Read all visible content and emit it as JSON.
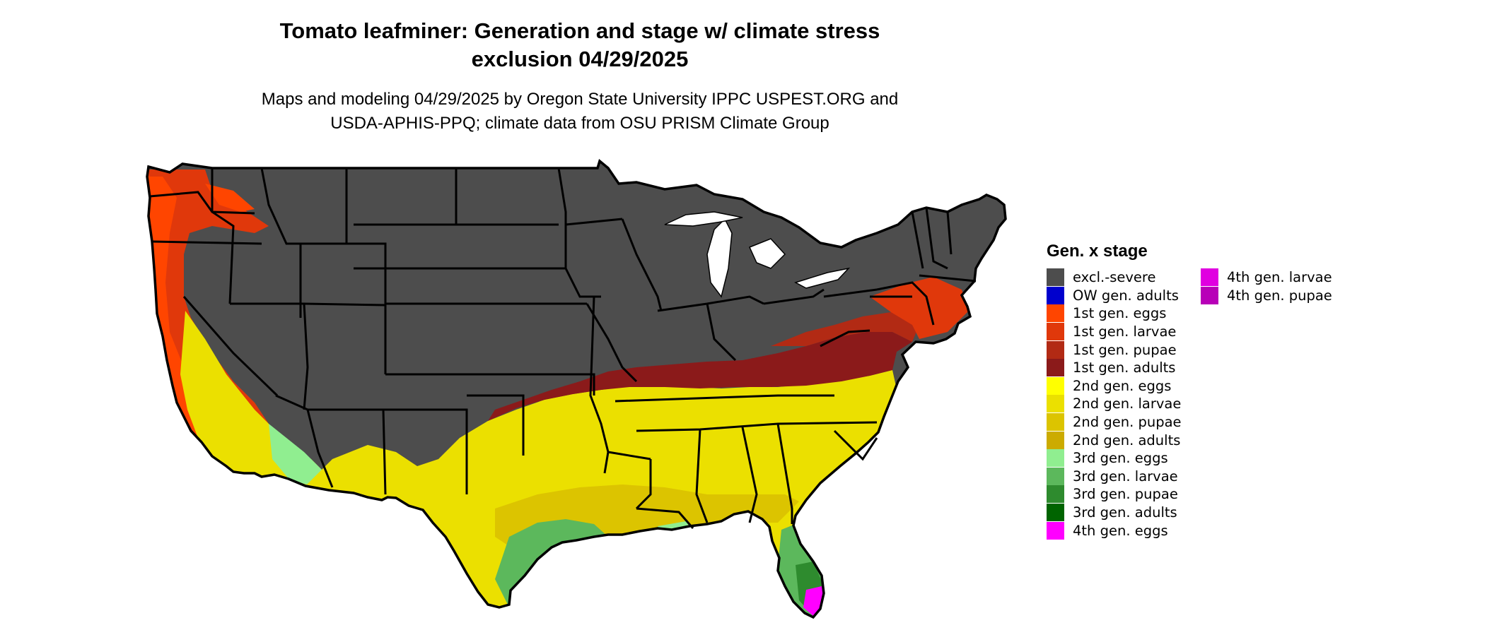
{
  "title": {
    "line1": "Tomato leafminer: Generation and stage w/ climate stress",
    "line2": "exclusion 04/29/2025"
  },
  "subtitle": {
    "line1": "Maps and modeling 04/29/2025 by Oregon State University IPPC USPEST.ORG and",
    "line2": "USDA-APHIS-PPQ; climate data from OSU PRISM Climate Group"
  },
  "map": {
    "region": "Contiguous United States",
    "boundaries": "state outlines"
  },
  "legend": {
    "title": "Gen. x stage",
    "column1": [
      {
        "label": "excl.-severe",
        "color": "#4d4d4d"
      },
      {
        "label": "OW gen. adults",
        "color": "#0000cd"
      },
      {
        "label": "1st gen. eggs",
        "color": "#ff4500"
      },
      {
        "label": "1st gen. larvae",
        "color": "#e0380b"
      },
      {
        "label": "1st gen. pupae",
        "color": "#b22a14"
      },
      {
        "label": "1st gen. adults",
        "color": "#8b1a1a"
      },
      {
        "label": "2nd gen. eggs",
        "color": "#ffff00"
      },
      {
        "label": "2nd gen. larvae",
        "color": "#ebe000"
      },
      {
        "label": "2nd gen. pupae",
        "color": "#dcc400"
      },
      {
        "label": "2nd gen. adults",
        "color": "#ccab00"
      },
      {
        "label": "3rd gen. eggs",
        "color": "#90ee90"
      },
      {
        "label": "3rd gen. larvae",
        "color": "#5cb85c"
      },
      {
        "label": "3rd gen. pupae",
        "color": "#2e8b2e"
      },
      {
        "label": "3rd gen. adults",
        "color": "#006400"
      },
      {
        "label": "4th gen. eggs",
        "color": "#ff00ff"
      }
    ],
    "column2": [
      {
        "label": "4th gen. larvae",
        "color": "#e000e0"
      },
      {
        "label": "4th gen. pupae",
        "color": "#b800b8"
      }
    ]
  }
}
